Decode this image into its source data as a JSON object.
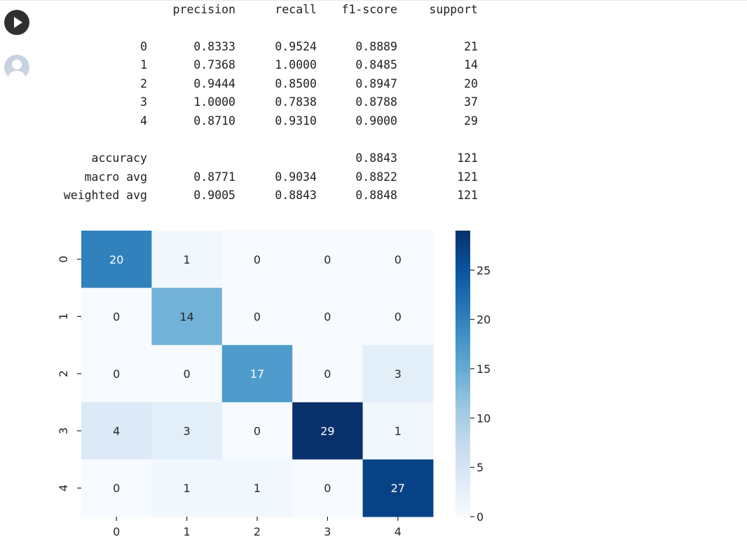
{
  "report": {
    "headers": [
      "precision",
      "recall",
      "f1-score",
      "support"
    ],
    "rows": [
      {
        "label": "0",
        "precision": "0.8333",
        "recall": "0.9524",
        "f1": "0.8889",
        "support": "21"
      },
      {
        "label": "1",
        "precision": "0.7368",
        "recall": "1.0000",
        "f1": "0.8485",
        "support": "14"
      },
      {
        "label": "2",
        "precision": "0.9444",
        "recall": "0.8500",
        "f1": "0.8947",
        "support": "20"
      },
      {
        "label": "3",
        "precision": "1.0000",
        "recall": "0.7838",
        "f1": "0.8788",
        "support": "37"
      },
      {
        "label": "4",
        "precision": "0.8710",
        "recall": "0.9310",
        "f1": "0.9000",
        "support": "29"
      }
    ],
    "summary": [
      {
        "label": "accuracy",
        "precision": "",
        "recall": "",
        "f1": "0.8843",
        "support": "121"
      },
      {
        "label": "macro avg",
        "precision": "0.8771",
        "recall": "0.9034",
        "f1": "0.8822",
        "support": "121"
      },
      {
        "label": "weighted avg",
        "precision": "0.9005",
        "recall": "0.8843",
        "f1": "0.8848",
        "support": "121"
      }
    ]
  },
  "chart_data": {
    "type": "heatmap",
    "x_labels": [
      "0",
      "1",
      "2",
      "3",
      "4"
    ],
    "y_labels": [
      "0",
      "1",
      "2",
      "3",
      "4"
    ],
    "values": [
      [
        20,
        1,
        0,
        0,
        0
      ],
      [
        0,
        14,
        0,
        0,
        0
      ],
      [
        0,
        0,
        17,
        0,
        3
      ],
      [
        4,
        3,
        0,
        29,
        1
      ],
      [
        0,
        1,
        1,
        0,
        27
      ]
    ],
    "colormap": "Blues",
    "vmin": 0,
    "vmax": 29,
    "colorbar_ticks": [
      0,
      5,
      10,
      15,
      20,
      25
    ],
    "annotate": true
  },
  "icons": {
    "run": "play-icon",
    "user": "user-avatar-icon"
  }
}
